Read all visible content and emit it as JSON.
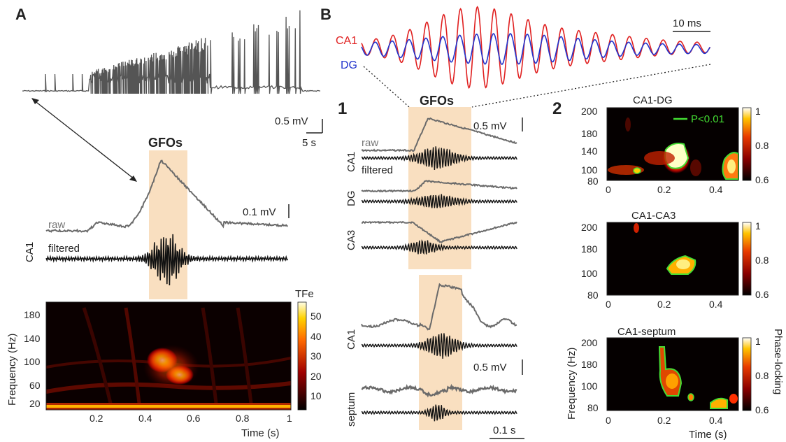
{
  "panels": {
    "A": {
      "letter": "A",
      "overview_scale": {
        "mv": "0.5 mV",
        "time": "5 s"
      },
      "gfos_label": "GFOs",
      "raw_label": "raw",
      "filtered_label": "filtered",
      "region_label": "CA1",
      "scale_mv": "0.1 mV",
      "spectrogram": {
        "ylabel": "Frequency (Hz)",
        "xlabel": "Time (s)",
        "colorbar_title": "TFe",
        "yticks": [
          "180",
          "140",
          "100",
          "60",
          "20"
        ],
        "xticks": [
          "0.2",
          "0.4",
          "0.6",
          "0.8",
          "1"
        ],
        "colorbar_ticks": [
          "50",
          "40",
          "30",
          "20",
          "10"
        ]
      }
    },
    "B": {
      "letter": "B",
      "sub1": "1",
      "sub2": "2",
      "overlay": {
        "ca1": "CA1",
        "dg": "DG",
        "scale": "10 ms",
        "ca1_color": "#e02020",
        "dg_color": "#2233cc"
      },
      "gfos_label": "GFOs",
      "scale_mv_top": "0.5 mV",
      "scale_mv_bottom": "0.5 mV",
      "scale_time": "0.1 s",
      "traces_top": {
        "ca1": "CA1",
        "raw": "raw",
        "filtered": "filtered",
        "dg": "DG",
        "ca3": "CA3"
      },
      "traces_bottom": {
        "ca1": "CA1",
        "septum": "septum"
      },
      "phase_maps": [
        {
          "title": "CA1-DG",
          "yticks": [
            "200",
            "180",
            "140",
            "100",
            "80"
          ],
          "xticks": [
            "0",
            "0.2",
            "0.4"
          ],
          "cticks": [
            "1",
            "0.8",
            "0.6"
          ],
          "legend": "P<0.01"
        },
        {
          "title": "CA1-CA3",
          "yticks": [
            "200",
            "180",
            "100",
            "80"
          ],
          "xticks": [
            "0",
            "0.2",
            "0.4"
          ],
          "cticks": [
            "1",
            "0.8",
            "0.6"
          ]
        },
        {
          "title": "CA1-septum",
          "yticks": [
            "200",
            "180",
            "100",
            "80"
          ],
          "xticks": [
            "0",
            "0.2",
            "0.4"
          ],
          "cticks": [
            "1",
            "0.8",
            "0.6"
          ]
        }
      ],
      "phase_ylabel": "Frequency (Hz)",
      "phase_xlabel": "Time (s)",
      "phase_cbar_label": "Phase-locking",
      "legend_color": "#44dd33"
    }
  }
}
